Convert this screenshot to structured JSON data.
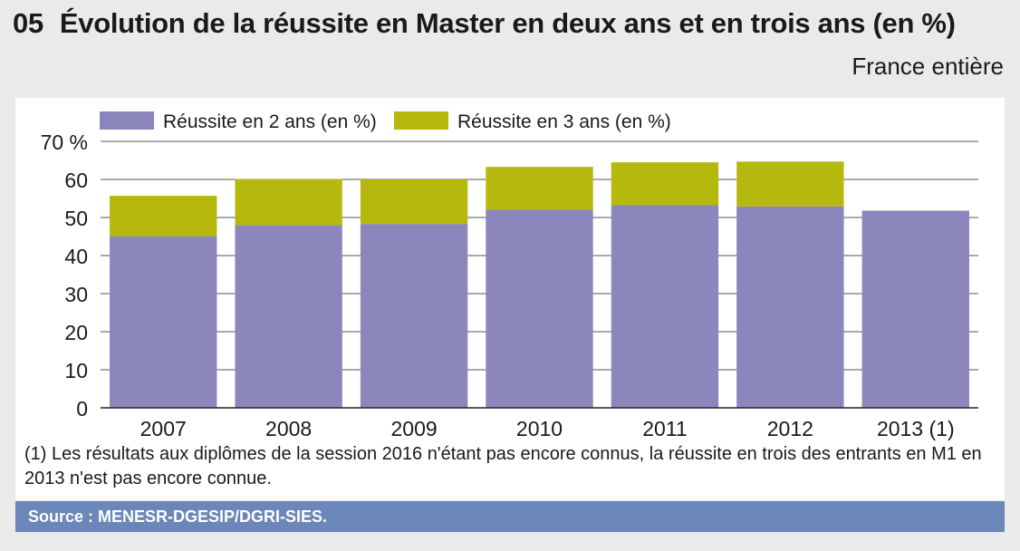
{
  "figure": {
    "number": "05",
    "title": "Évolution de la réussite en Master en deux ans et en trois ans (en %)",
    "subtitle": "France entière",
    "footnote": "(1) Les résultats aux diplômes de la session 2016 n'étant pas encore connus, la réussite en trois des entrants en M1 en 2013 n'est pas encore connue.",
    "source": "Source : MENESR-DGESIP/DGRI-SIES."
  },
  "chart_data": {
    "type": "bar",
    "stacked": true,
    "categories": [
      "2007",
      "2008",
      "2009",
      "2010",
      "2011",
      "2012",
      "2013 (1)"
    ],
    "series": [
      {
        "name": "Réussite en 2 ans (en %)",
        "color": "#8b86bc",
        "values": [
          45.1,
          48.0,
          48.3,
          52.1,
          53.3,
          52.9,
          51.8
        ]
      },
      {
        "name": "Réussite en 3 ans (en %)",
        "color": "#b5b90d",
        "values": [
          10.6,
          12.1,
          11.7,
          11.2,
          11.2,
          11.8,
          0
        ]
      }
    ],
    "yticks": [
      "0",
      "10",
      "20",
      "30",
      "40",
      "50",
      "60",
      "70 %"
    ],
    "ylim": [
      0,
      70
    ],
    "grid": true,
    "legend_position": "top"
  }
}
